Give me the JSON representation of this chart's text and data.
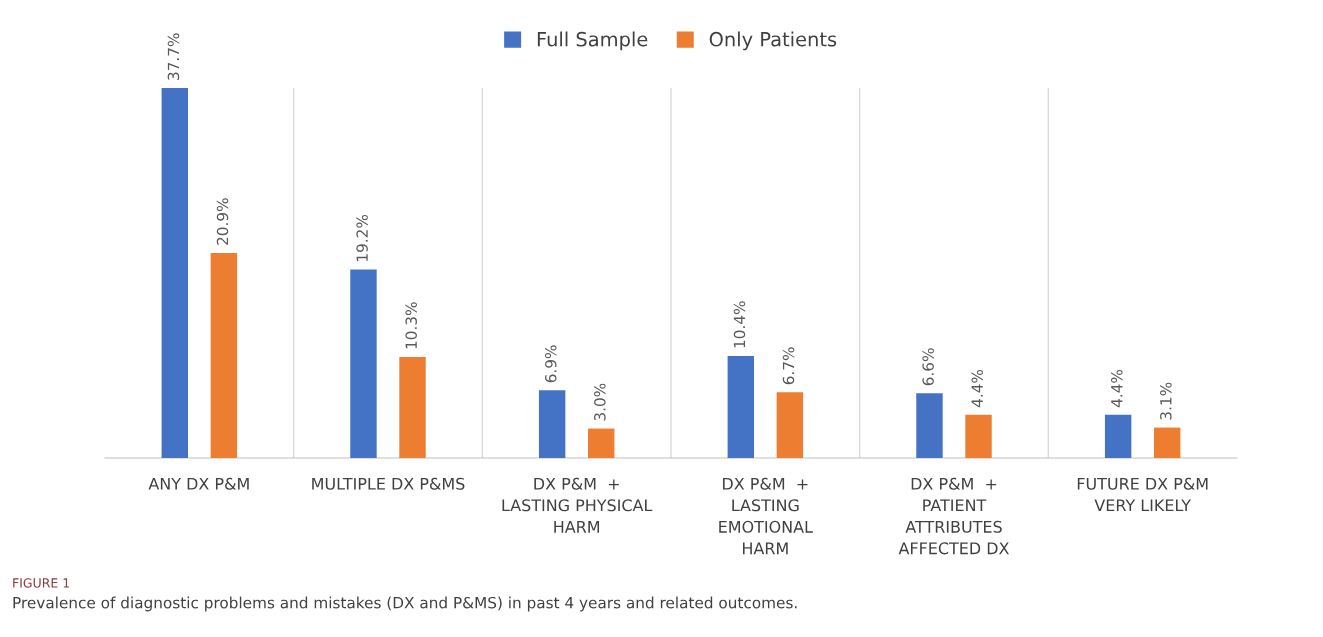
{
  "chart_data": {
    "type": "bar",
    "categories": [
      "ANY DX P&M",
      "MULTIPLE DX P&MS",
      "DX P&M  +\nLASTING PHYSICAL\nHARM",
      "DX P&M  +\nLASTING\nEMOTIONAL\nHARM",
      "DX P&M  +\nPATIENT\nATTRIBUTES\nAFFECTED DX",
      "FUTURE DX P&M\nVERY LIKELY"
    ],
    "series": [
      {
        "name": "Full Sample",
        "color": "#4472c4",
        "values": [
          37.7,
          19.2,
          6.9,
          10.4,
          6.6,
          4.4
        ],
        "value_labels": [
          "37.7%",
          "19.2%",
          "6.9%",
          "10.4%",
          "6.6%",
          "4.4%"
        ]
      },
      {
        "name": "Only Patients",
        "color": "#ed7d31",
        "values": [
          20.9,
          10.3,
          3.0,
          6.7,
          4.4,
          3.1
        ],
        "value_labels": [
          "20.9%",
          "10.3%",
          "3.0%",
          "6.7%",
          "4.4%",
          "3.1%"
        ]
      }
    ],
    "legend": "top",
    "grid": "x",
    "annotations": [
      "FIGURE 1",
      "Prevalence of diagnostic problems and mistakes (DX and P&MS) in past 4 years and related outcomes."
    ]
  }
}
